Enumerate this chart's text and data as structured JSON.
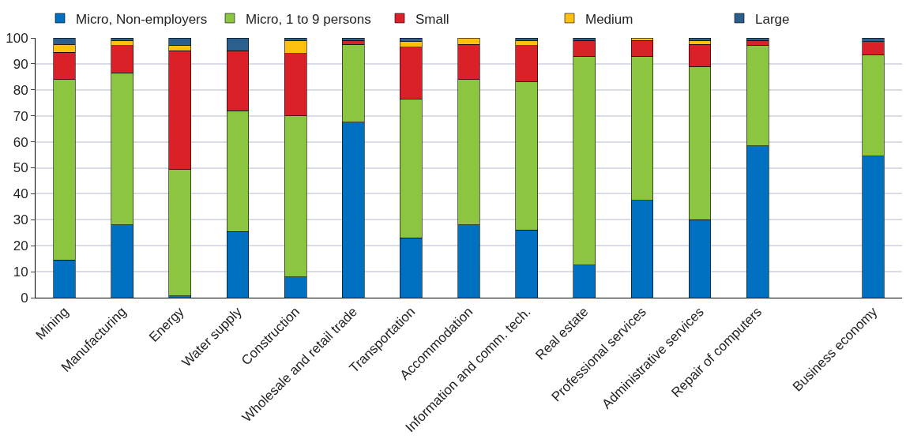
{
  "chart_data": {
    "type": "bar",
    "stacked": true,
    "legend": "top",
    "grid": "y",
    "categories": [
      "Mining",
      "Manufacturing",
      "Energy",
      "Water supply",
      "Construction",
      "Wholesale and retail trade",
      "Transportation",
      "Accommodation",
      "Information and comm. tech.",
      "Real estate",
      "Professional services",
      "Administrative services",
      "Repair of computers",
      null,
      "Business economy"
    ],
    "ylim": [
      0,
      100
    ],
    "yticks": [
      0,
      10,
      20,
      30,
      40,
      50,
      60,
      70,
      80,
      90,
      100
    ],
    "series": [
      {
        "name": "Micro, Non-employers",
        "color": "#0070c0",
        "values": [
          14.5,
          28,
          0.7,
          25.5,
          8,
          67.5,
          23,
          28,
          26,
          12.5,
          37.5,
          30,
          58.5,
          null,
          54.5
        ]
      },
      {
        "name": "Micro, 1 to 9 persons",
        "color": "#8cc641",
        "values": [
          69.5,
          58.5,
          48.6,
          46.5,
          62,
          30,
          53.5,
          56,
          57,
          80.5,
          55.5,
          59,
          38.5,
          null,
          39
        ]
      },
      {
        "name": "Small",
        "color": "#da2128",
        "values": [
          10.5,
          10.5,
          45.7,
          23,
          24,
          1.5,
          20,
          13.5,
          14,
          6,
          6,
          8.5,
          2,
          null,
          5
        ]
      },
      {
        "name": "Medium",
        "color": "#fdc00f",
        "values": [
          3,
          2,
          2,
          0,
          5,
          0,
          2,
          2.5,
          2,
          0,
          1,
          1.5,
          0,
          null,
          0
        ]
      },
      {
        "name": "Large",
        "color": "#2b5f8e",
        "values": [
          2.5,
          1,
          3,
          5,
          1,
          1,
          1.5,
          0,
          1,
          1,
          0,
          1,
          1,
          null,
          1.5
        ]
      }
    ]
  }
}
